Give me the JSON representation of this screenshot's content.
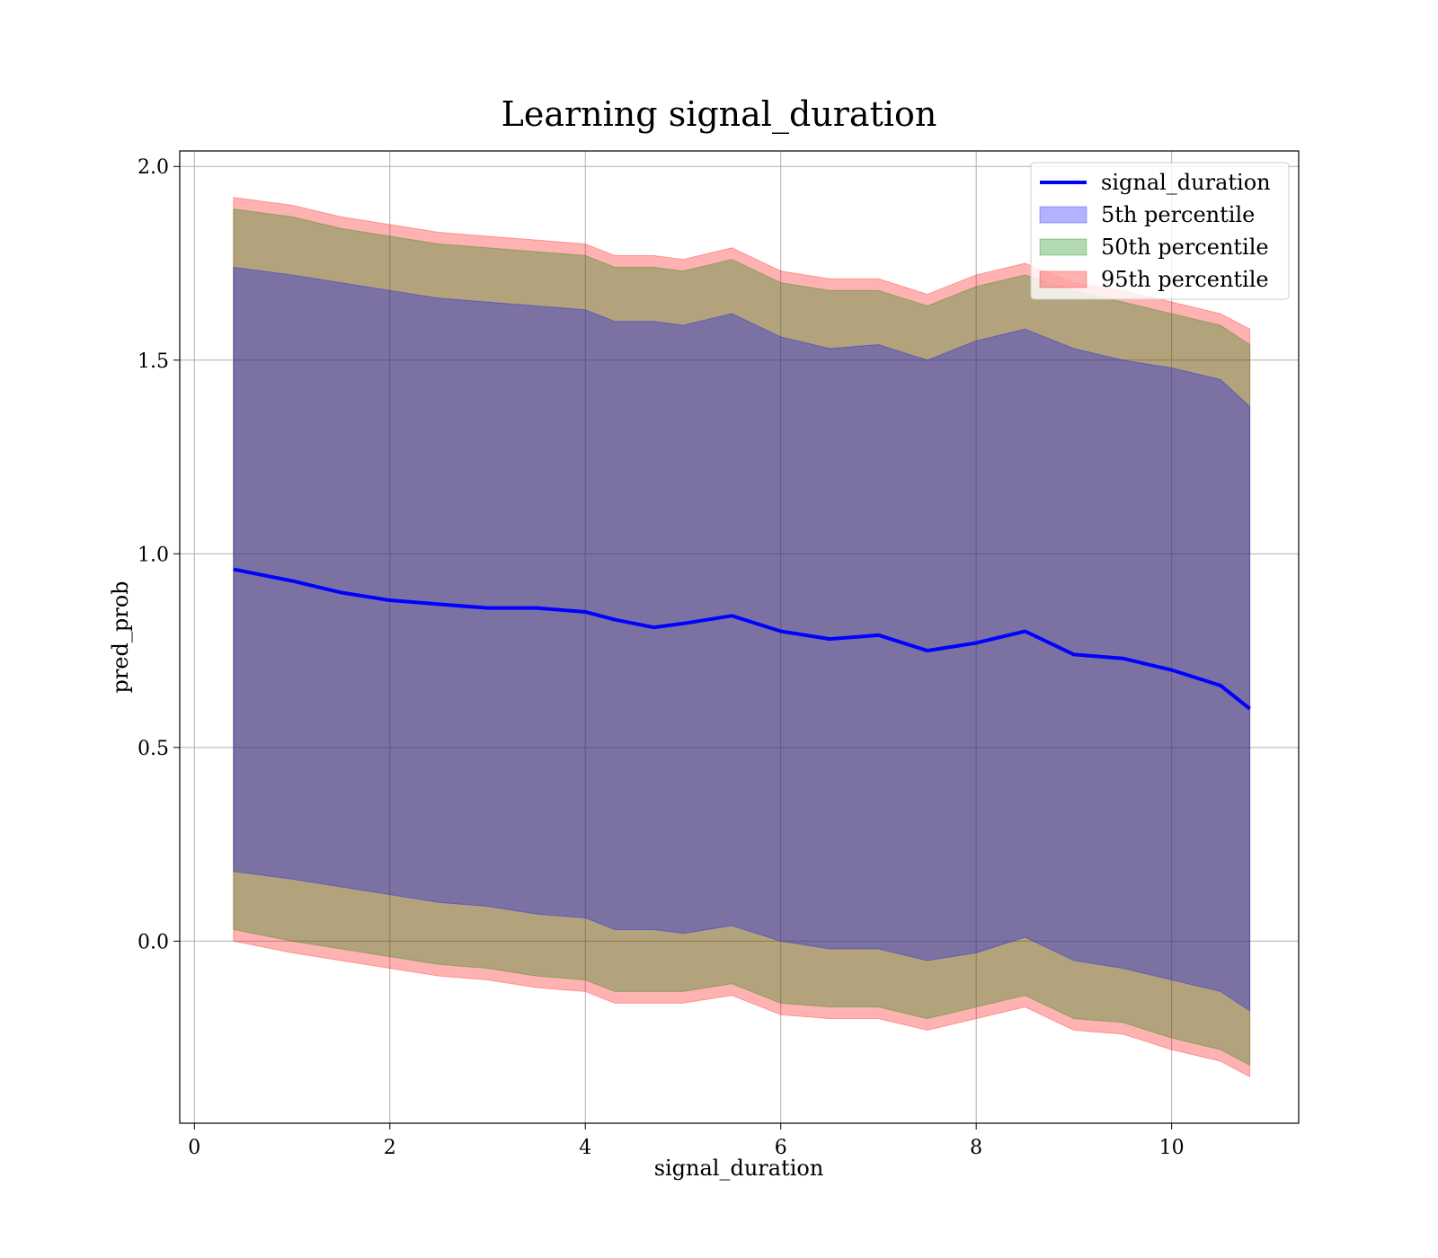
{
  "chart_data": {
    "type": "line",
    "title": "Learning signal_duration",
    "xlabel": "signal_duration",
    "ylabel": "pred_prob",
    "xlim": [
      -0.15,
      11.3
    ],
    "ylim": [
      -0.47,
      2.04
    ],
    "xticks": [
      0,
      2,
      4,
      6,
      8,
      10
    ],
    "yticks": [
      0.0,
      0.5,
      1.0,
      1.5,
      2.0
    ],
    "xtick_labels": [
      "0",
      "2",
      "4",
      "6",
      "8",
      "10"
    ],
    "ytick_labels": [
      "0.0",
      "0.5",
      "1.0",
      "1.5",
      "2.0"
    ],
    "grid": true,
    "legend_position": "top-right",
    "legend": [
      {
        "label": "signal_duration",
        "kind": "line",
        "color": "#0000ff"
      },
      {
        "label": "5th percentile",
        "kind": "patch",
        "color": "#0000ff"
      },
      {
        "label": "50th percentile",
        "kind": "patch",
        "color": "#008000"
      },
      {
        "label": "95th percentile",
        "kind": "patch",
        "color": "#ff0000"
      }
    ],
    "x": [
      0.4,
      1.0,
      1.5,
      2.0,
      2.5,
      3.0,
      3.5,
      4.0,
      4.3,
      4.7,
      5.0,
      5.5,
      6.0,
      6.5,
      7.0,
      7.5,
      8.0,
      8.5,
      9.0,
      9.5,
      10.0,
      10.5,
      10.8
    ],
    "series": [
      {
        "name": "signal_duration",
        "kind": "line",
        "color": "#0000ff",
        "values": [
          0.96,
          0.93,
          0.9,
          0.88,
          0.87,
          0.86,
          0.86,
          0.85,
          0.83,
          0.81,
          0.82,
          0.84,
          0.8,
          0.78,
          0.79,
          0.75,
          0.77,
          0.8,
          0.74,
          0.73,
          0.7,
          0.66,
          0.6
        ]
      },
      {
        "name": "5th percentile",
        "kind": "band",
        "color": "#0000ff",
        "upper": [
          1.74,
          1.72,
          1.7,
          1.68,
          1.66,
          1.65,
          1.64,
          1.63,
          1.6,
          1.6,
          1.59,
          1.62,
          1.56,
          1.53,
          1.54,
          1.5,
          1.55,
          1.58,
          1.53,
          1.5,
          1.48,
          1.45,
          1.38
        ],
        "lower": [
          0.18,
          0.16,
          0.14,
          0.12,
          0.1,
          0.09,
          0.07,
          0.06,
          0.03,
          0.03,
          0.02,
          0.04,
          0.0,
          -0.02,
          -0.02,
          -0.05,
          -0.03,
          0.01,
          -0.05,
          -0.07,
          -0.1,
          -0.13,
          -0.18
        ]
      },
      {
        "name": "50th percentile",
        "kind": "band",
        "color": "#008000",
        "upper": [
          1.89,
          1.87,
          1.84,
          1.82,
          1.8,
          1.79,
          1.78,
          1.77,
          1.74,
          1.74,
          1.73,
          1.76,
          1.7,
          1.68,
          1.68,
          1.64,
          1.69,
          1.72,
          1.68,
          1.65,
          1.62,
          1.59,
          1.54
        ],
        "lower": [
          0.03,
          0.0,
          -0.02,
          -0.04,
          -0.06,
          -0.07,
          -0.09,
          -0.1,
          -0.13,
          -0.13,
          -0.13,
          -0.11,
          -0.16,
          -0.17,
          -0.17,
          -0.2,
          -0.17,
          -0.14,
          -0.2,
          -0.21,
          -0.25,
          -0.28,
          -0.32
        ]
      },
      {
        "name": "95th percentile",
        "kind": "band",
        "color": "#ff0000",
        "upper": [
          1.92,
          1.9,
          1.87,
          1.85,
          1.83,
          1.82,
          1.81,
          1.8,
          1.77,
          1.77,
          1.76,
          1.79,
          1.73,
          1.71,
          1.71,
          1.67,
          1.72,
          1.75,
          1.7,
          1.68,
          1.65,
          1.62,
          1.58
        ],
        "lower": [
          0.0,
          -0.03,
          -0.05,
          -0.07,
          -0.09,
          -0.1,
          -0.12,
          -0.13,
          -0.16,
          -0.16,
          -0.16,
          -0.14,
          -0.19,
          -0.2,
          -0.2,
          -0.23,
          -0.2,
          -0.17,
          -0.23,
          -0.24,
          -0.28,
          -0.31,
          -0.35
        ]
      }
    ]
  }
}
